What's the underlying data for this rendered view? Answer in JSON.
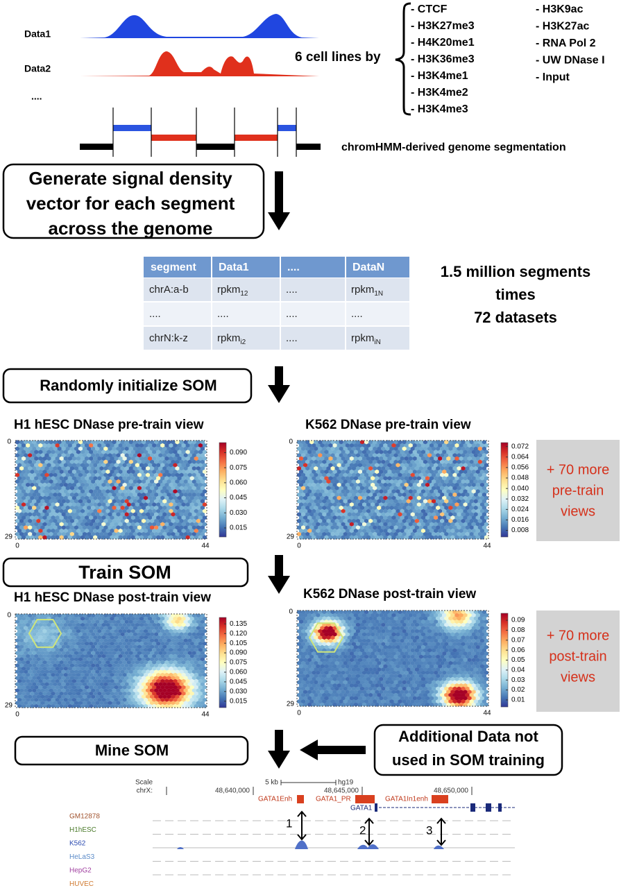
{
  "tracks": {
    "labels": [
      "Data1",
      "Data2",
      "...."
    ]
  },
  "cell_lines": {
    "lead": "6 cell lines by",
    "marks": [
      [
        "- CTCF",
        "- H3K27me3",
        "- H4K20me1",
        "- H3K36me3",
        "- H3K4me1",
        "- H3K4me2",
        "- H3K4me3"
      ],
      [
        "- H3K9ac",
        "- H3K27ac",
        "- RNA Pol 2",
        "- UW DNase I",
        "- Input"
      ]
    ]
  },
  "segmentation": "chromHMM-derived genome segmentation",
  "steps": {
    "generate": [
      "Generate signal density",
      "vector for each segment",
      "across the genome"
    ],
    "initialize": "Randomly initialize SOM",
    "train": "Train SOM",
    "mine": "Mine SOM"
  },
  "table": {
    "header": [
      "segment",
      "Data1",
      "....",
      "DataN"
    ],
    "rows": [
      [
        {
          "text": "chrA:a-b"
        },
        {
          "text": "rpkm",
          "sub": "12"
        },
        {
          "text": "...."
        },
        {
          "text": "rpkm",
          "sub": "1N"
        }
      ],
      [
        {
          "text": "...."
        },
        {
          "text": "...."
        },
        {
          "text": "...."
        },
        {
          "text": "...."
        }
      ],
      [
        {
          "text": "chrN:k-z"
        },
        {
          "text": "rpkm",
          "sub": "i2"
        },
        {
          "text": "...."
        },
        {
          "text": "rpkm",
          "sub": "iN"
        }
      ]
    ]
  },
  "summary": [
    "1.5 million segments",
    "times",
    "72 datasets"
  ],
  "som_views": [
    {
      "title": "H1 hESC DNase pre-train view",
      "row_labels": [
        0,
        29
      ],
      "col_labels": [
        0,
        44
      ],
      "colorbar": {
        "clim": [
          0.006,
          0.1
        ],
        "ticks": [
          {
            "value": 0.015,
            "label": "0.015"
          },
          {
            "value": 0.03,
            "label": "0.030"
          },
          {
            "value": 0.045,
            "label": "0.045"
          },
          {
            "value": 0.06,
            "label": "0.060"
          },
          {
            "value": 0.075,
            "label": "0.075"
          },
          {
            "value": 0.09,
            "label": "0.090"
          }
        ]
      }
    },
    {
      "title": "K562 DNase pre-train view",
      "row_labels": [
        0,
        29
      ],
      "col_labels": [
        0,
        44
      ],
      "colorbar": {
        "clim": [
          0.003,
          0.075
        ],
        "ticks": [
          {
            "value": 0.008,
            "label": "0.008"
          },
          {
            "value": 0.016,
            "label": "0.016"
          },
          {
            "value": 0.024,
            "label": "0.024"
          },
          {
            "value": 0.032,
            "label": "0.032"
          },
          {
            "value": 0.04,
            "label": "0.040"
          },
          {
            "value": 0.048,
            "label": "0.048"
          },
          {
            "value": 0.056,
            "label": "0.056"
          },
          {
            "value": 0.064,
            "label": "0.064"
          },
          {
            "value": 0.072,
            "label": "0.072"
          }
        ]
      }
    },
    {
      "title": "H1 hESC DNase post-train view",
      "row_labels": [
        0,
        29
      ],
      "col_labels": [
        0,
        44
      ],
      "colorbar": {
        "clim": [
          0.005,
          0.145
        ],
        "ticks": [
          {
            "value": 0.015,
            "label": "0.015"
          },
          {
            "value": 0.03,
            "label": "0.030"
          },
          {
            "value": 0.045,
            "label": "0.045"
          },
          {
            "value": 0.06,
            "label": "0.060"
          },
          {
            "value": 0.075,
            "label": "0.075"
          },
          {
            "value": 0.09,
            "label": "0.090"
          },
          {
            "value": 0.105,
            "label": "0.105"
          },
          {
            "value": 0.12,
            "label": "0.120"
          },
          {
            "value": 0.135,
            "label": "0.135"
          }
        ]
      }
    },
    {
      "title": "K562 DNase post-train view",
      "row_labels": [
        0,
        29
      ],
      "col_labels": [
        0,
        44
      ],
      "colorbar": {
        "clim": [
          0.003,
          0.097
        ],
        "ticks": [
          0.01,
          0.02,
          0.03,
          0.04,
          0.05,
          0.06,
          0.07,
          0.08,
          0.09
        ]
      }
    }
  ],
  "more_views": [
    [
      "+ 70 more",
      "pre-train",
      "views"
    ],
    [
      "+ 70 more",
      "post-train",
      "views"
    ]
  ],
  "additional_data": [
    "Additional Data not",
    "used in SOM training"
  ],
  "browser": {
    "scale": "Scale",
    "chrom": "chrX:",
    "scale_bar": "5 kb",
    "assembly": "hg19",
    "positions": [
      "48,640,000",
      "48,645,000",
      "48,650,000"
    ],
    "features": [
      "GATA1Enh",
      "GATA1_PR",
      "GATA1In1enh"
    ],
    "gene": "GATA1",
    "tracks": [
      "GM12878",
      "H1hESC",
      "K562",
      "HeLaS3",
      "HepG2",
      "HUVEC"
    ],
    "peaks": [
      "1",
      "2",
      "3"
    ]
  }
}
